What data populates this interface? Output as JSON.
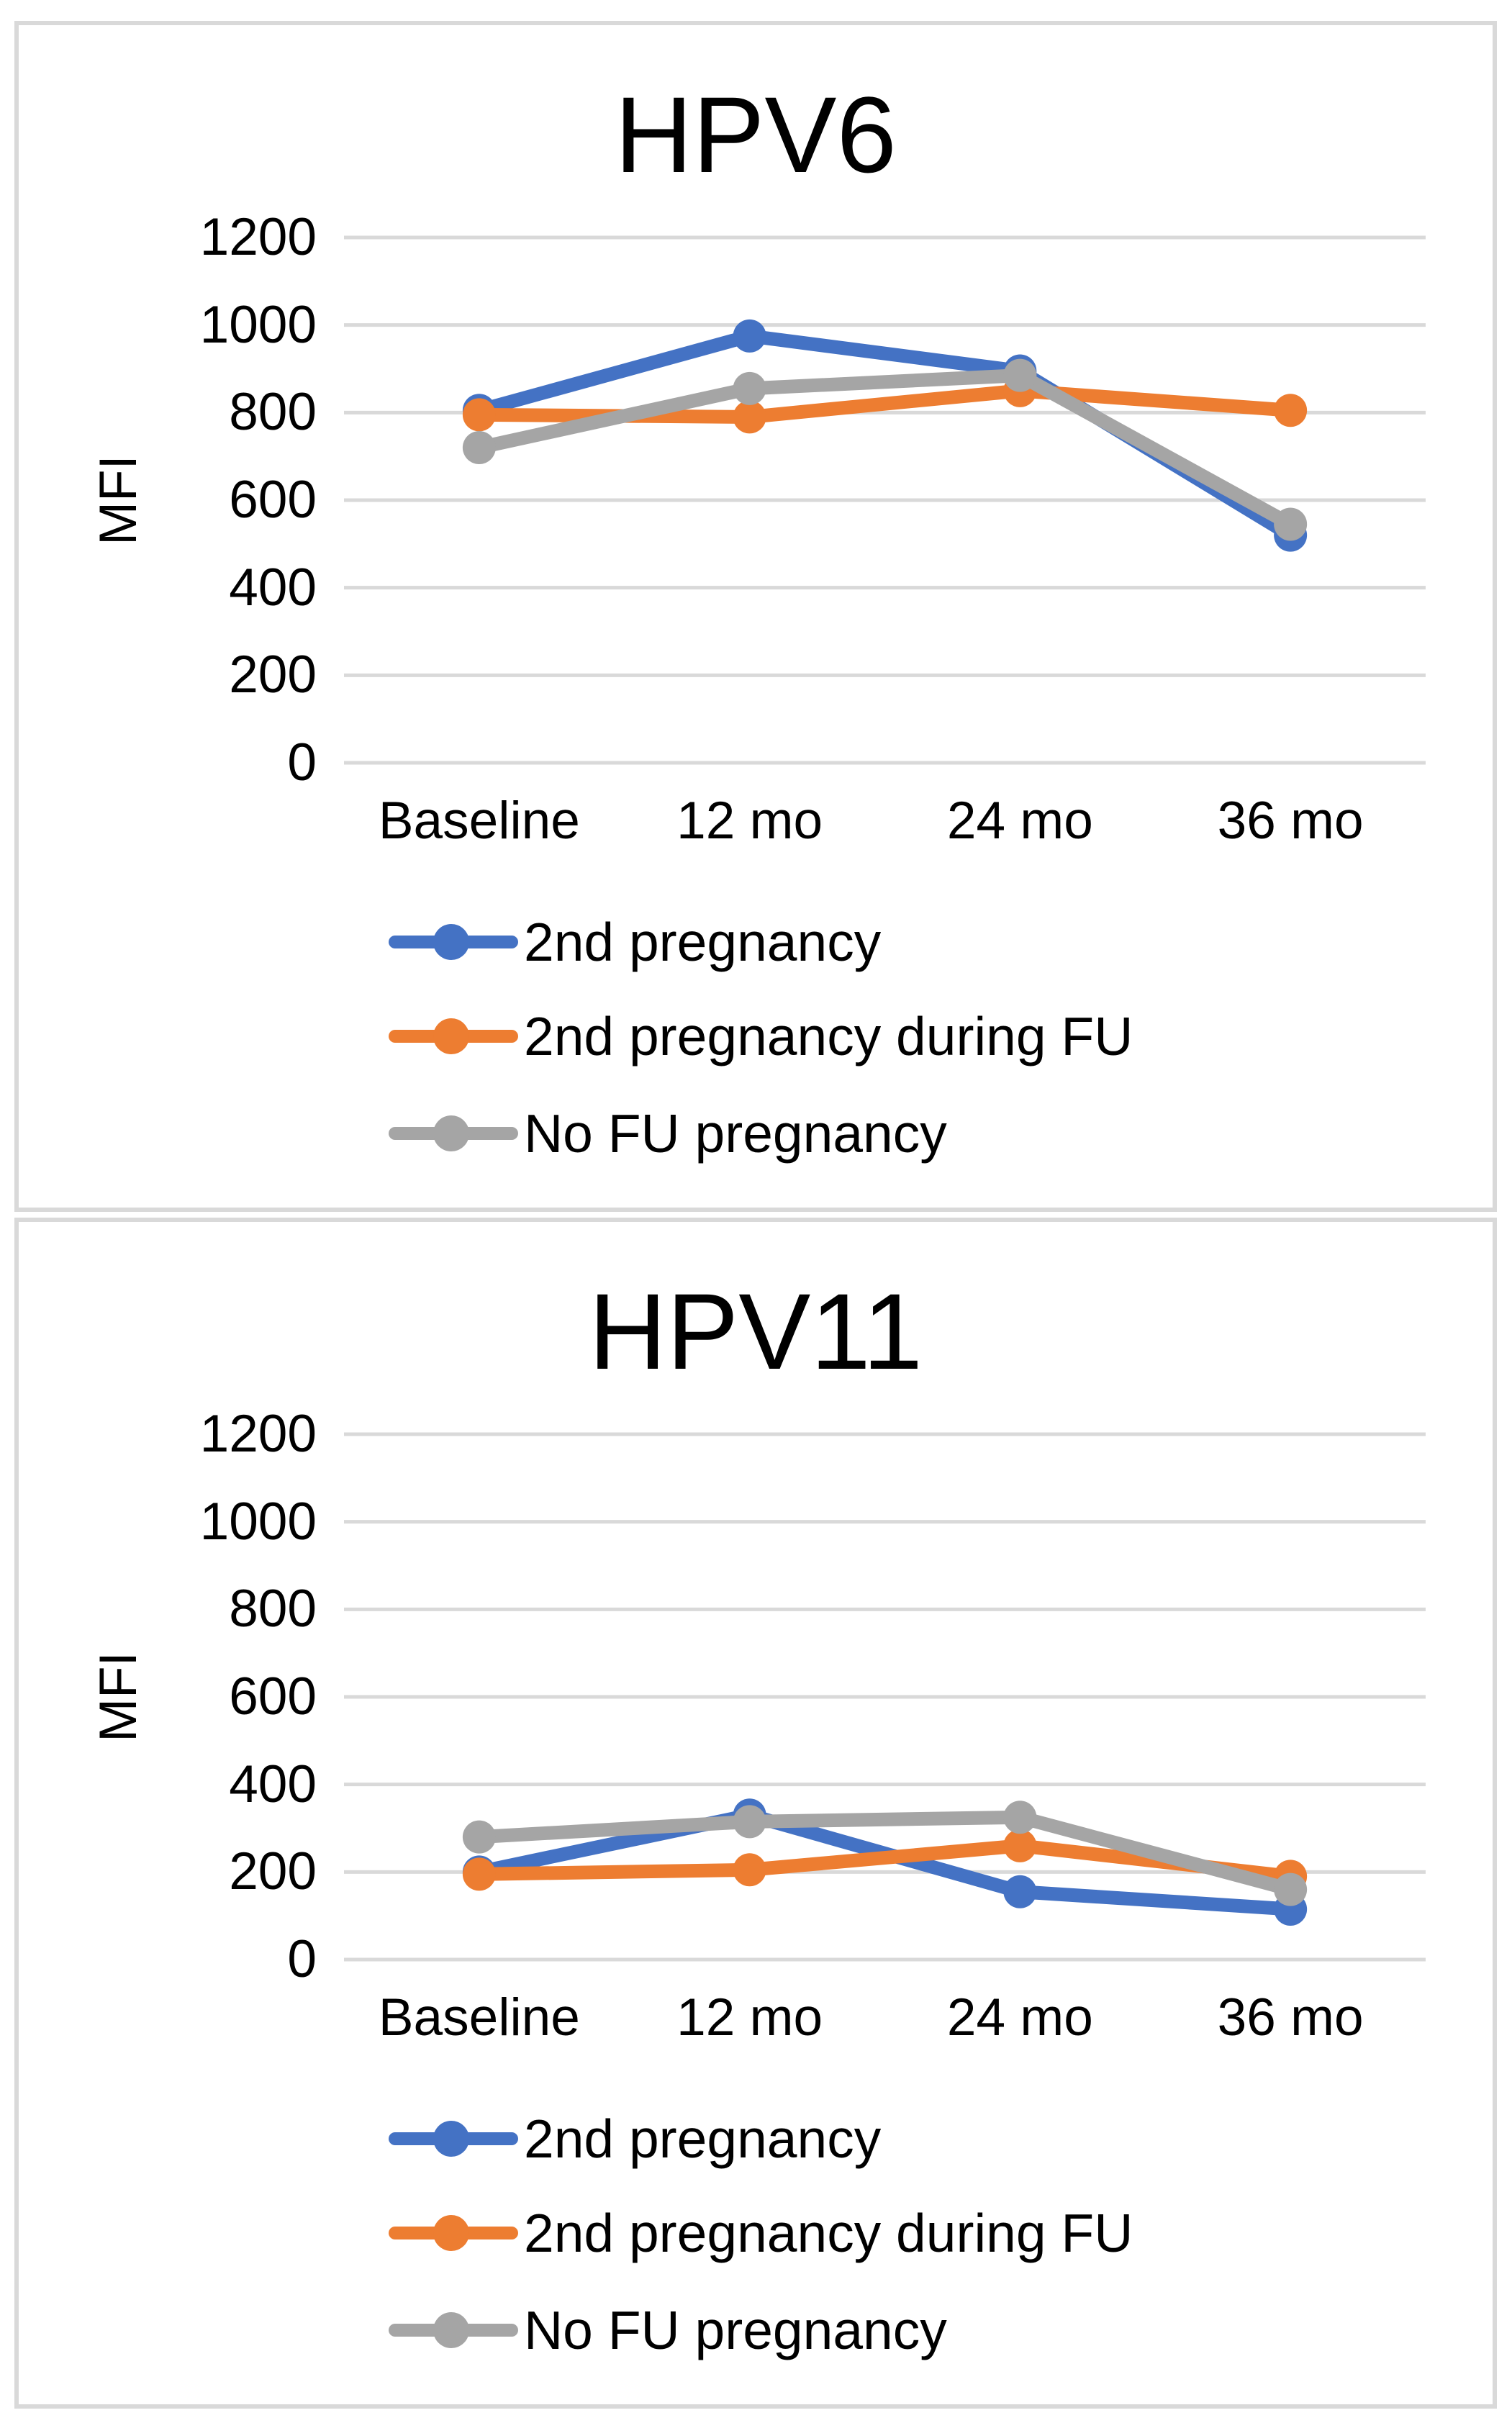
{
  "grid_color": "#d9d9d9",
  "panel_border_color": "#d9d9d9",
  "text_color": "#000000",
  "chart_data": [
    {
      "type": "line",
      "title": "HPV6",
      "ylabel": "MFI",
      "xlabel": "",
      "categories": [
        "Baseline",
        "12 mo",
        "24 mo",
        "36 mo"
      ],
      "y_ticks": [
        1200,
        1000,
        800,
        600,
        400,
        200,
        0
      ],
      "ylim": [
        0,
        1200
      ],
      "grid": true,
      "legend_position": "bottom-left",
      "series": [
        {
          "name": "2nd pregnancy",
          "color": "#4472C4",
          "values": [
            805,
            975,
            895,
            520
          ]
        },
        {
          "name": "2nd pregnancy during FU",
          "color": "#ED7D31",
          "values": [
            795,
            790,
            850,
            805
          ]
        },
        {
          "name": "No FU pregnancy",
          "color": "#A5A5A5",
          "values": [
            720,
            855,
            885,
            545
          ]
        }
      ]
    },
    {
      "type": "line",
      "title": "HPV11",
      "ylabel": "MFI",
      "xlabel": "",
      "categories": [
        "Baseline",
        "12 mo",
        "24 mo",
        "36 mo"
      ],
      "y_ticks": [
        1200,
        1000,
        800,
        600,
        400,
        200,
        0
      ],
      "ylim": [
        0,
        1200
      ],
      "grid": true,
      "legend_position": "bottom-left",
      "series": [
        {
          "name": "2nd pregnancy",
          "color": "#4472C4",
          "values": [
            200,
            330,
            155,
            115
          ]
        },
        {
          "name": "2nd pregnancy during FU",
          "color": "#ED7D31",
          "values": [
            195,
            205,
            260,
            190
          ]
        },
        {
          "name": "No FU pregnancy",
          "color": "#A5A5A5",
          "values": [
            280,
            315,
            325,
            160
          ]
        }
      ]
    }
  ]
}
